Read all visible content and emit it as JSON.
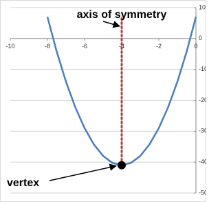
{
  "chart_data": {
    "type": "line",
    "x": [
      -8,
      -7.5,
      -7,
      -6.5,
      -6,
      -5.5,
      -5,
      -4.5,
      -4,
      -3.5,
      -3,
      -2.5,
      -2,
      -1.5,
      -1,
      -0.5,
      0
    ],
    "values": [
      7,
      -4.25,
      -14,
      -22.25,
      -29,
      -34.25,
      -38,
      -40.25,
      -41,
      -40.25,
      -38,
      -34.25,
      -29,
      -22.25,
      -14,
      -4.25,
      7
    ],
    "color": "#4a7ebb",
    "xlim": [
      -10,
      0
    ],
    "xticks": [
      -10,
      -8,
      -6,
      -4,
      -2,
      0
    ],
    "ylim": [
      -50,
      10
    ],
    "yticks": [
      -50,
      -40,
      -30,
      -20,
      -10,
      0,
      10
    ],
    "grid": true,
    "axis_of_symmetry": {
      "x": -4,
      "y": [
        -41,
        7
      ],
      "color": "#c0504d",
      "label": "axis of symmetry"
    },
    "vertex": {
      "x": -4,
      "y": -41,
      "label": "vertex"
    }
  }
}
